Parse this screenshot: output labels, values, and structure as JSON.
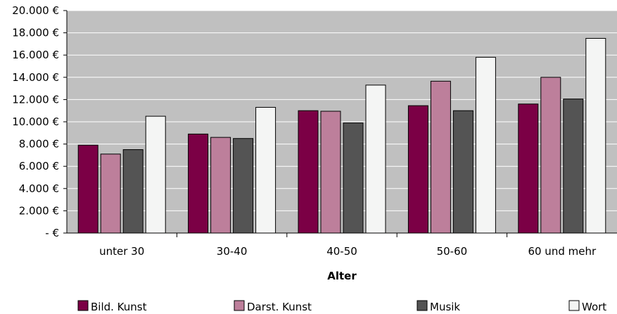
{
  "chart_data": {
    "type": "bar",
    "title": "",
    "xlabel": "Alter",
    "ylabel": "",
    "categories": [
      "unter 30",
      "30-40",
      "40-50",
      "50-60",
      "60 und mehr"
    ],
    "series": [
      {
        "name": "Bild. Kunst",
        "color": "#7b0045",
        "values": [
          7900,
          8900,
          11000,
          11450,
          11600
        ]
      },
      {
        "name": "Darst. Kunst",
        "color": "#bd7f9b",
        "values": [
          7100,
          8600,
          10950,
          13650,
          14000
        ]
      },
      {
        "name": "Musik",
        "color": "#545454",
        "values": [
          7500,
          8500,
          9900,
          11000,
          12050
        ]
      },
      {
        "name": "Wort",
        "color": "#f4f5f4",
        "values": [
          10500,
          11300,
          13300,
          15800,
          17500
        ]
      }
    ],
    "ylim": [
      0,
      20000
    ],
    "y_ticks": [
      0,
      2000,
      4000,
      6000,
      8000,
      10000,
      12000,
      14000,
      16000,
      18000,
      20000
    ],
    "y_tick_labels": [
      "-  €",
      "2.000 €",
      "4.000 €",
      "6.000 €",
      "8.000 €",
      "10.000 €",
      "12.000 €",
      "14.000 €",
      "16.000 €",
      "18.000 €",
      "20.000 €"
    ],
    "grid": true,
    "plot_background": "#c0c0c0",
    "legend_position": "bottom"
  }
}
